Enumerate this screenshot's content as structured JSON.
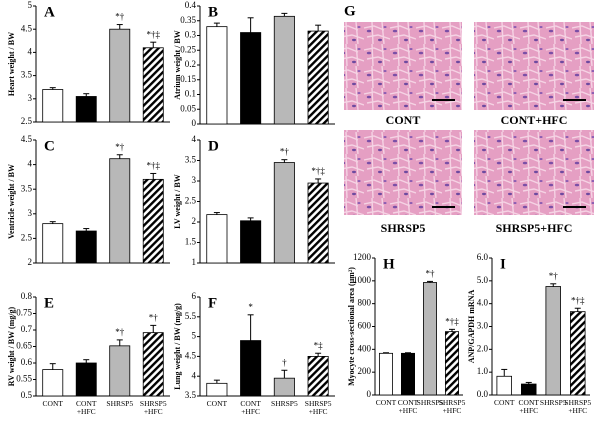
{
  "chart_data": [
    {
      "type": "bar",
      "label": "A",
      "ylabel": "Heart weight / BW",
      "values": [
        3.2,
        3.05,
        4.5,
        4.1
      ],
      "errors": [
        0.04,
        0.06,
        0.1,
        0.12
      ],
      "value_annotations": [
        null,
        null,
        "*†",
        "*†‡"
      ],
      "colors": [
        "#ffffff",
        "#000000",
        "#b8b8b8",
        "#ffffff"
      ],
      "hatch": [
        false,
        false,
        false,
        true
      ],
      "ylim": [
        2.5,
        5
      ],
      "yticks": [
        2.5,
        3,
        3.5,
        4,
        4.5,
        5
      ]
    },
    {
      "type": "bar",
      "label": "B",
      "ylabel": "Atrium weight / BW",
      "values": [
        0.33,
        0.31,
        0.365,
        0.315
      ],
      "errors": [
        0.012,
        0.05,
        0.01,
        0.02
      ],
      "colors": [
        "#ffffff",
        "#000000",
        "#b8b8b8",
        "#ffffff"
      ],
      "hatch": [
        false,
        false,
        false,
        true
      ],
      "ylim": [
        0,
        0.4
      ],
      "yticks": [
        0,
        0.05,
        0.1,
        0.15,
        0.2,
        0.25,
        0.3,
        0.35,
        0.4
      ]
    },
    {
      "type": "bar",
      "label": "C",
      "ylabel": "Ventricle weight / BW",
      "values": [
        2.8,
        2.65,
        4.12,
        3.7
      ],
      "errors": [
        0.04,
        0.05,
        0.08,
        0.12
      ],
      "value_annotations": [
        null,
        null,
        "*†",
        "*†‡"
      ],
      "colors": [
        "#ffffff",
        "#000000",
        "#b8b8b8",
        "#ffffff"
      ],
      "hatch": [
        false,
        false,
        false,
        true
      ],
      "ylim": [
        2,
        4.5
      ],
      "yticks": [
        2,
        2.5,
        3,
        3.5,
        4,
        4.5
      ]
    },
    {
      "type": "bar",
      "label": "D",
      "ylabel": "LV weight / BW",
      "values": [
        2.18,
        2.03,
        3.45,
        2.95
      ],
      "errors": [
        0.05,
        0.07,
        0.07,
        0.1
      ],
      "value_annotations": [
        null,
        null,
        "*†",
        "*†‡"
      ],
      "colors": [
        "#ffffff",
        "#000000",
        "#b8b8b8",
        "#ffffff"
      ],
      "hatch": [
        false,
        false,
        false,
        true
      ],
      "ylim": [
        1,
        4
      ],
      "yticks": [
        1,
        1.5,
        2,
        2.5,
        3,
        3.5,
        4
      ]
    },
    {
      "type": "bar",
      "label": "E",
      "ylabel": "RV weight / BW (mg/g)",
      "categories": [
        "CONT",
        "CONT +HFC",
        "SHRSP5",
        "SHRSP5 +HFC"
      ],
      "values": [
        0.58,
        0.6,
        0.652,
        0.692
      ],
      "errors": [
        0.018,
        0.01,
        0.018,
        0.022
      ],
      "value_annotations": [
        null,
        null,
        "*†",
        "*†"
      ],
      "colors": [
        "#ffffff",
        "#000000",
        "#b8b8b8",
        "#ffffff"
      ],
      "hatch": [
        false,
        false,
        false,
        true
      ],
      "ylim": [
        0.5,
        0.8
      ],
      "yticks": [
        0.5,
        0.55,
        0.6,
        0.65,
        0.7,
        0.75,
        0.8
      ]
    },
    {
      "type": "bar",
      "label": "F",
      "ylabel": "Lung weight / BW (mg/g)",
      "categories": [
        "CONT",
        "CONT +HFC",
        "SHRSP5",
        "SHRSP5 +HFC"
      ],
      "values": [
        3.82,
        4.9,
        3.95,
        4.5
      ],
      "errors": [
        0.08,
        0.65,
        0.2,
        0.08
      ],
      "value_annotations": [
        null,
        "*",
        "†",
        "*‡"
      ],
      "colors": [
        "#ffffff",
        "#000000",
        "#b8b8b8",
        "#ffffff"
      ],
      "hatch": [
        false,
        false,
        false,
        true
      ],
      "ylim": [
        3.5,
        6
      ],
      "yticks": [
        3.5,
        4,
        4.5,
        5,
        5.5,
        6
      ]
    },
    {
      "type": "bar",
      "label": "H",
      "ylabel": "Myocyte cross-sectional area (μm²)",
      "categories": [
        "CONT",
        "CONT +HFC",
        "SHRSP5",
        "SHRSP5 +HFC"
      ],
      "values": [
        365,
        365,
        985,
        555
      ],
      "errors": [
        5,
        5,
        10,
        20
      ],
      "value_annotations": [
        null,
        null,
        "*†",
        "*†‡"
      ],
      "colors": [
        "#ffffff",
        "#000000",
        "#b8b8b8",
        "#ffffff"
      ],
      "hatch": [
        false,
        false,
        false,
        true
      ],
      "ylim": [
        0,
        1200
      ],
      "yticks": [
        0,
        200,
        400,
        600,
        800,
        1000,
        1200
      ]
    },
    {
      "type": "bar",
      "label": "I",
      "ylabel": "ANP/GAPDH mRNA",
      "categories": [
        "CONT",
        "CONT +HFC",
        "SHRSP5",
        "SHRSP5 +HFC"
      ],
      "values": [
        0.82,
        0.48,
        4.75,
        3.65
      ],
      "errors": [
        0.3,
        0.07,
        0.12,
        0.15
      ],
      "value_annotations": [
        null,
        null,
        "*†",
        "*†‡"
      ],
      "colors": [
        "#ffffff",
        "#000000",
        "#b8b8b8",
        "#ffffff"
      ],
      "hatch": [
        false,
        false,
        false,
        true
      ],
      "ylim": [
        0,
        6
      ],
      "yticks": [
        {
          "value": 0,
          "label": "0.0"
        },
        {
          "value": 1,
          "label": "1.0"
        },
        {
          "value": 2,
          "label": "2.0"
        },
        {
          "value": 3,
          "label": "3.0"
        },
        {
          "value": 4,
          "label": "4.0"
        },
        {
          "value": 5,
          "label": "5.0"
        },
        {
          "value": 6,
          "label": "6.0"
        }
      ]
    }
  ],
  "micrographs": {
    "label": "G",
    "captions": [
      "CONT",
      "CONT+HFC",
      "SHRSP5",
      "SHRSP5+HFC"
    ]
  }
}
